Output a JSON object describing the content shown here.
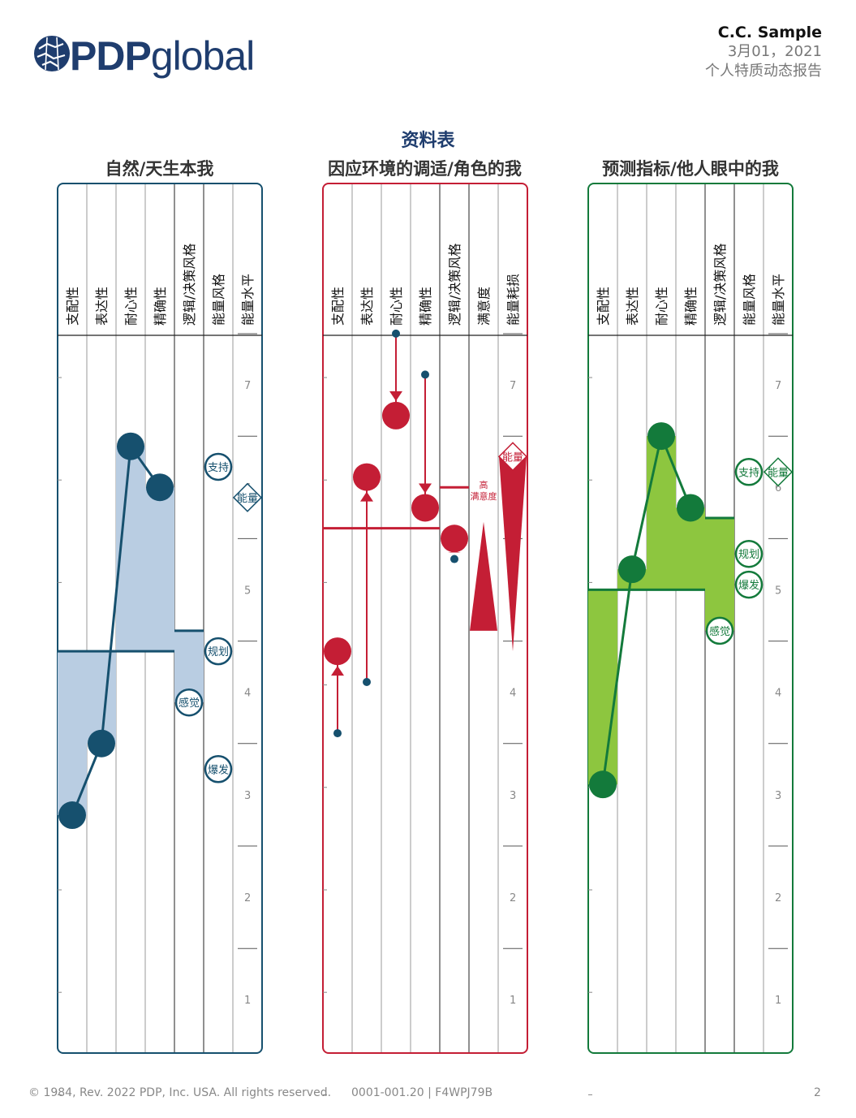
{
  "brand": {
    "logo_text_bold": "PDP",
    "logo_text_light": "global",
    "logo_color": "#1f3d6e"
  },
  "header": {
    "name": "C.C. Sample",
    "date": "3月01，2021",
    "report_title": "个人特质动态报告"
  },
  "page_title": "资料表",
  "colors": {
    "basic": "#16506e",
    "basic_fill": "#b9cde2",
    "priority": "#c41e35",
    "predictor": "#137a3b",
    "predictor_fill": "#8dc63f",
    "title": "#1f3d6e"
  },
  "chart_data": [
    {
      "type": "line",
      "title": "自然/天生本我",
      "columns": [
        "支配性",
        "表达性",
        "耐心性",
        "精确性",
        "逻辑/决策风格",
        "能量风格",
        "能量水平"
      ],
      "series": [
        {
          "values": [
            2.8,
            3.5,
            6.4,
            6.0
          ]
        }
      ],
      "midline": 4.4,
      "logic_bar": 4.6,
      "energy_badges": [
        {
          "label": "支持",
          "value": 6.2
        },
        {
          "label": "规划",
          "value": 4.4
        },
        {
          "label": "爆发",
          "value": 3.25
        }
      ],
      "logic_badge": {
        "label": "感觉",
        "value": 3.9
      },
      "energy_level": {
        "label": "能量",
        "value": 5.9
      },
      "y_ticks": [
        "1",
        "2",
        "3",
        "4",
        "5",
        "6",
        "7"
      ],
      "ylim": [
        0.5,
        8.2
      ]
    },
    {
      "type": "line",
      "title": "因应环境的调适/角色的我",
      "columns": [
        "支配性",
        "表达性",
        "耐心性",
        "精确性",
        "逻辑/决策风格",
        "满意度",
        "能量耗损"
      ],
      "series": [
        {
          "values": [
            4.4,
            6.1,
            6.7,
            5.8
          ]
        },
        {
          "values": [
            3.6,
            4.1,
            7.5,
            7.1
          ]
        }
      ],
      "midline": 5.6,
      "logic_bar": {
        "value": 5.5,
        "arrow_from": 5.3,
        "line": 6.0
      },
      "satisfaction": {
        "label": "高\n满意度",
        "top": 5.9,
        "bottom": 4.6
      },
      "energy_drain": {
        "label": "能量",
        "top": 6.3,
        "bottom": 4.4
      },
      "y_ticks": [
        "1",
        "2",
        "3",
        "4",
        "5",
        "6",
        "7"
      ],
      "ylim": [
        0.5,
        8.2
      ]
    },
    {
      "type": "line",
      "title": "预测指标/他人眼中的我",
      "columns": [
        "支配性",
        "表达性",
        "耐心性",
        "精确性",
        "逻辑/决策风格",
        "能量风格",
        "能量水平"
      ],
      "series": [
        {
          "values": [
            3.1,
            5.2,
            6.5,
            5.8
          ]
        }
      ],
      "midline": 5.0,
      "logic_bar": 5.7,
      "energy_badges": [
        {
          "label": "支持",
          "value": 6.15
        },
        {
          "label": "规划",
          "value": 5.35
        },
        {
          "label": "爆发",
          "value": 5.05
        }
      ],
      "logic_badge": {
        "label": "感觉",
        "value": 4.6
      },
      "energy_level": {
        "label": "能量",
        "value": 6.15
      },
      "y_ticks": [
        "1",
        "2",
        "3",
        "4",
        "5",
        "6",
        "7"
      ],
      "ylim": [
        0.5,
        8.2
      ]
    }
  ],
  "footer": {
    "copyright": "© 1984, Rev. 2022 PDP, Inc. USA. All rights reserved.",
    "code": "0001-001.20 | F4WPJ79B",
    "page": "2"
  }
}
